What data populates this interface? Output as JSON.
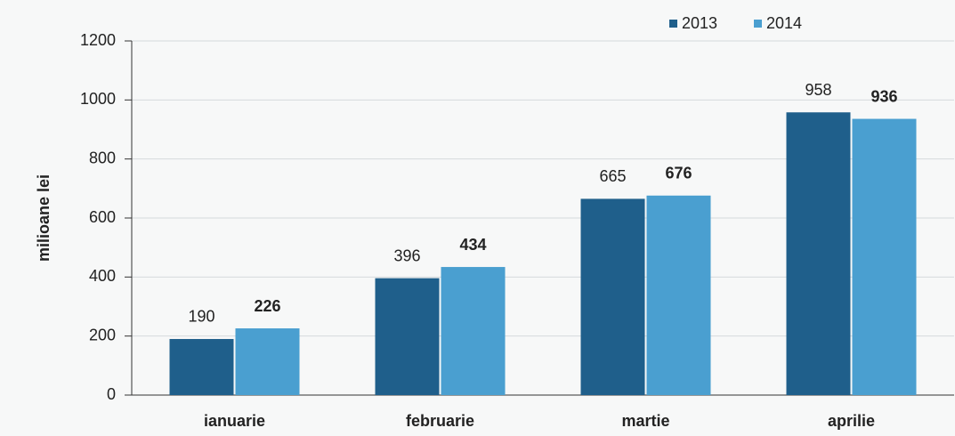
{
  "chart_data": {
    "type": "bar",
    "y_label": "milioane lei",
    "categories": [
      "ianuarie",
      "februarie",
      "martie",
      "aprilie"
    ],
    "series": [
      {
        "name": "2013",
        "color": "#1f5f8b",
        "values": [
          190,
          396,
          665,
          958
        ]
      },
      {
        "name": "2014",
        "color": "#4a9fd0",
        "values": [
          226,
          434,
          676,
          936
        ]
      }
    ],
    "ylim": [
      0,
      1200
    ],
    "yticks": [
      0,
      200,
      400,
      600,
      800,
      1000,
      1200
    ],
    "grid": true,
    "legend": "top-right"
  }
}
